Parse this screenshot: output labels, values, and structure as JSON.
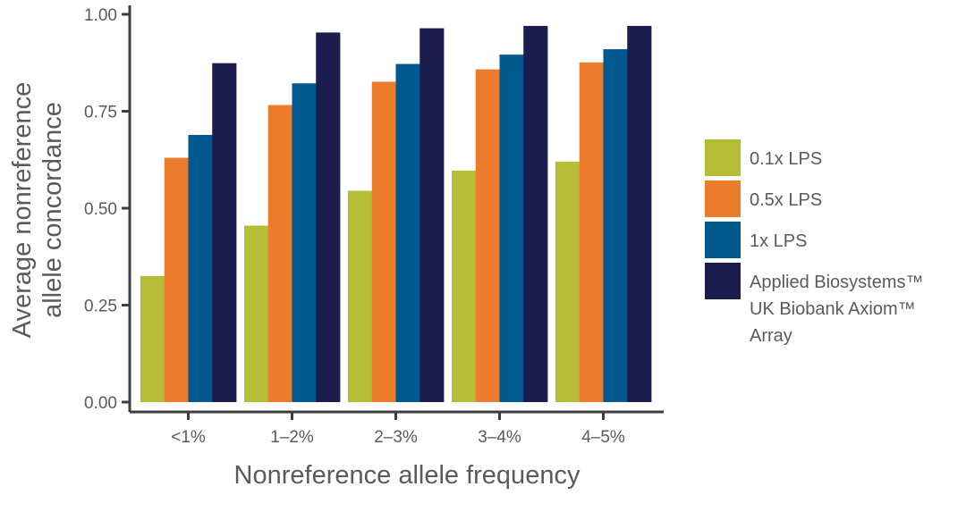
{
  "chart_data": {
    "type": "bar",
    "title": "",
    "xlabel": "Nonreference allele frequency",
    "ylabel_lines": [
      "Average nonreference",
      "allele concordance"
    ],
    "categories": [
      "<1%",
      "1–2%",
      "2–3%",
      "3–4%",
      "4–5%"
    ],
    "ylim": [
      0,
      1.0
    ],
    "yticks": [
      "0.00",
      "0.25",
      "0.50",
      "0.75",
      "1.00"
    ],
    "grid": false,
    "legend_position": "right",
    "series": [
      {
        "name": "0.1x LPS",
        "color": "#b5bd37",
        "values": [
          0.325,
          0.455,
          0.545,
          0.597,
          0.62
        ]
      },
      {
        "name": "0.5x LPS",
        "color": "#ec7b2c",
        "values": [
          0.63,
          0.766,
          0.826,
          0.858,
          0.876
        ]
      },
      {
        "name": "1x LPS",
        "color": "#005a8f",
        "values": [
          0.689,
          0.822,
          0.872,
          0.896,
          0.91
        ]
      },
      {
        "name": "Applied Biosystems™ UK Biobank Axiom™ Array",
        "legend_lines": [
          "Applied Biosystems™",
          "UK Biobank Axiom™",
          "Array"
        ],
        "color": "#1c1c4f",
        "values": [
          0.874,
          0.953,
          0.964,
          0.97,
          0.97
        ]
      }
    ]
  }
}
